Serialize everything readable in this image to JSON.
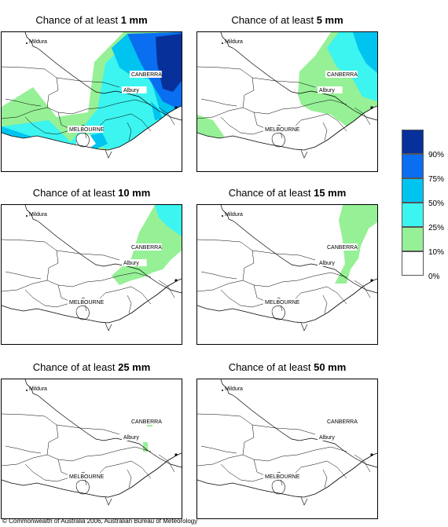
{
  "panels": [
    {
      "prefix": "Chance of at least ",
      "amount": "1 mm",
      "level": 0
    },
    {
      "prefix": "Chance of at least ",
      "amount": "5 mm",
      "level": 1
    },
    {
      "prefix": "Chance of at least ",
      "amount": "10 mm",
      "level": 2
    },
    {
      "prefix": "Chance of at least ",
      "amount": "15 mm",
      "level": 3
    },
    {
      "prefix": "Chance of at least ",
      "amount": "25 mm",
      "level": 4
    },
    {
      "prefix": "Chance of at least ",
      "amount": "50 mm",
      "level": 5
    }
  ],
  "places": {
    "mildura": "Mildura",
    "canberra": "CANBERRA",
    "albury": "Albury",
    "melbourne": "MELBOURNE"
  },
  "legend": {
    "bands": [
      {
        "label": "90%",
        "color": "#08309a"
      },
      {
        "label": "75%",
        "color": "#0a6ef0"
      },
      {
        "label": "50%",
        "color": "#00c4f0"
      },
      {
        "label": "25%",
        "color": "#3cf4f0"
      },
      {
        "label": "10%",
        "color": "#96f096"
      },
      {
        "label": "0%",
        "color": "#ffffff"
      }
    ]
  },
  "copyright": "© Commonwealth of Australia 2006, Australian Bureau of Meteorology"
}
